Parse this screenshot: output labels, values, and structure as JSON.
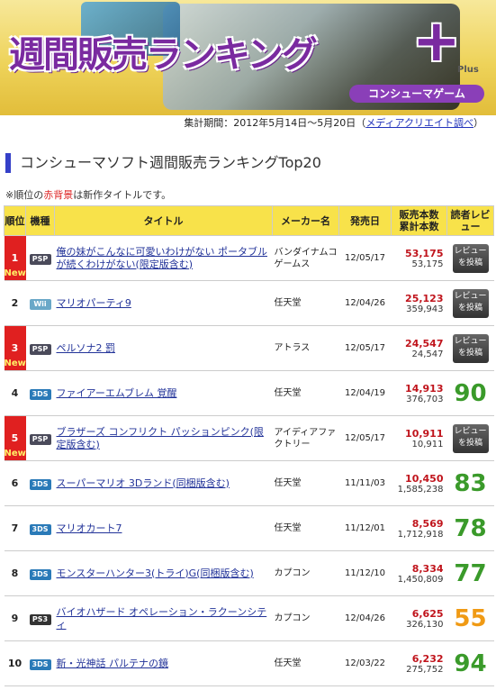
{
  "banner": {
    "title": "週間販売ランキング",
    "plus_mark": "+",
    "plus_label": "Plus",
    "subtitle": "コンシューマゲーム"
  },
  "period": {
    "text": "集計期間：2012年5月14日～5月20日（",
    "source_link": "メディアクリエイト調べ",
    "close": "）"
  },
  "heading": "コンシューマソフト週間販売ランキングTop20",
  "note": {
    "prefix": "※順位の",
    "red": "赤背景",
    "suffix": "は新作タイトルです。"
  },
  "columns": {
    "rank": "順位",
    "platform": "機種",
    "title": "タイトル",
    "maker": "メーカー名",
    "date": "発売日",
    "sales_week": "販売本数",
    "sales_total": "累計本数",
    "review": "読者レビュー"
  },
  "new_label": "New",
  "review_button": "レビューを投稿",
  "colors": {
    "score_green": "#3a9a2a",
    "score_orange": "#f09a14",
    "new_bg": "#e02020"
  },
  "rows": [
    {
      "rank": "1",
      "new": true,
      "platform": "PSP",
      "plat_class": "psp",
      "title": "俺の妹がこんなに可愛いわけがない ポータブルが続くわけがない(限定版含む)",
      "maker": "バンダイナムコゲームス",
      "date": "12/05/17",
      "week": "53,175",
      "total": "53,175",
      "score": null
    },
    {
      "rank": "2",
      "new": false,
      "platform": "Wii",
      "plat_class": "wii",
      "title": "マリオパーティ9",
      "maker": "任天堂",
      "date": "12/04/26",
      "week": "25,123",
      "total": "359,943",
      "score": null
    },
    {
      "rank": "3",
      "new": true,
      "platform": "PSP",
      "plat_class": "psp",
      "title": "ペルソナ2 罰",
      "maker": "アトラス",
      "date": "12/05/17",
      "week": "24,547",
      "total": "24,547",
      "score": null
    },
    {
      "rank": "4",
      "new": false,
      "platform": "3DS",
      "plat_class": "ds3",
      "title": "ファイアーエムブレム 覚醒",
      "maker": "任天堂",
      "date": "12/04/19",
      "week": "14,913",
      "total": "376,703",
      "score": "90",
      "score_color": "green"
    },
    {
      "rank": "5",
      "new": true,
      "platform": "PSP",
      "plat_class": "psp",
      "title": "ブラザーズ コンフリクト パッションピンク(限定版含む)",
      "maker": "アイディアファクトリー",
      "date": "12/05/17",
      "week": "10,911",
      "total": "10,911",
      "score": null
    },
    {
      "rank": "6",
      "new": false,
      "platform": "3DS",
      "plat_class": "ds3",
      "title": "スーパーマリオ 3Dランド(同梱版含む)",
      "maker": "任天堂",
      "date": "11/11/03",
      "week": "10,450",
      "total": "1,585,238",
      "score": "83",
      "score_color": "green"
    },
    {
      "rank": "7",
      "new": false,
      "platform": "3DS",
      "plat_class": "ds3",
      "title": "マリオカート7",
      "maker": "任天堂",
      "date": "11/12/01",
      "week": "8,569",
      "total": "1,712,918",
      "score": "78",
      "score_color": "green"
    },
    {
      "rank": "8",
      "new": false,
      "platform": "3DS",
      "plat_class": "ds3",
      "title": "モンスターハンター3(トライ)G(同梱版含む)",
      "maker": "カプコン",
      "date": "11/12/10",
      "week": "8,334",
      "total": "1,450,809",
      "score": "77",
      "score_color": "green"
    },
    {
      "rank": "9",
      "new": false,
      "platform": "PS3",
      "plat_class": "ps3",
      "title": "バイオハザード オペレーション・ラクーンシティ",
      "maker": "カプコン",
      "date": "12/04/26",
      "week": "6,625",
      "total": "326,130",
      "score": "55",
      "score_color": "orange"
    },
    {
      "rank": "10",
      "new": false,
      "platform": "3DS",
      "plat_class": "ds3",
      "title": "新・光神話 パルテナの鏡",
      "maker": "任天堂",
      "date": "12/03/22",
      "week": "6,232",
      "total": "275,752",
      "score": "94",
      "score_color": "green"
    }
  ]
}
